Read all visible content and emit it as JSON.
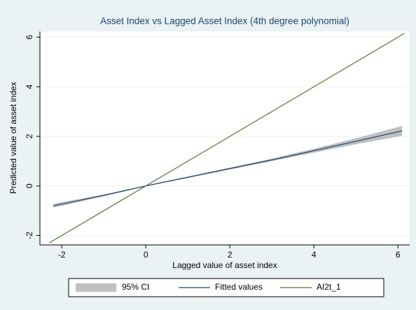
{
  "chart_data": {
    "type": "line",
    "title": "Asset Index vs Lagged Asset Index (4th degree polynomial)",
    "x_label": "Lagged value of asset index",
    "y_label": "Predicted value of asset index",
    "xlim": [
      -2.52,
      6.28
    ],
    "ylim": [
      -2.38,
      6.23
    ],
    "xticks": [
      -2,
      0,
      2,
      4,
      6
    ],
    "yticks": [
      -2,
      0,
      2,
      4,
      6
    ],
    "grid": true,
    "legend_position": "bottom",
    "series": [
      {
        "name": "95% CI",
        "type": "band",
        "color": "#c0c0c0",
        "x": [
          -2.2,
          -1,
          0,
          1,
          2,
          3,
          4,
          5,
          6.1
        ],
        "lower": [
          -0.88,
          -0.42,
          -0.02,
          0.32,
          0.66,
          1.0,
          1.34,
          1.68,
          2.02
        ],
        "upper": [
          -0.72,
          -0.34,
          0.02,
          0.38,
          0.74,
          1.1,
          1.5,
          1.92,
          2.42
        ]
      },
      {
        "name": "Fitted values",
        "type": "line",
        "color": "#1a476f",
        "x": [
          -2.2,
          -1,
          0,
          1,
          2,
          3,
          4,
          5,
          6.1
        ],
        "values": [
          -0.8,
          -0.38,
          0,
          0.35,
          0.7,
          1.05,
          1.42,
          1.8,
          2.22
        ]
      },
      {
        "name": "AI2t_1",
        "type": "line",
        "color": "#55752f",
        "x": [
          -2.3,
          6.15
        ],
        "values": [
          -2.3,
          6.15
        ]
      }
    ]
  }
}
